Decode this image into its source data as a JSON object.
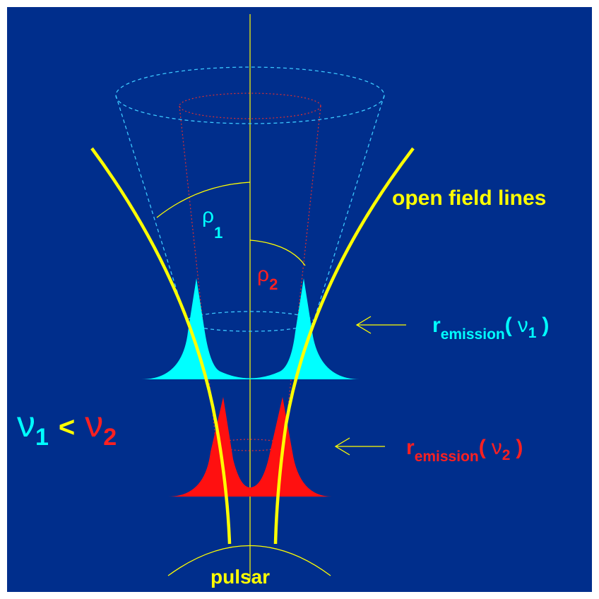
{
  "labels": {
    "open_field_lines": "open field lines",
    "pulsar": "pulsar",
    "rho1": {
      "symbol": "ρ",
      "subscript": "1"
    },
    "rho2": {
      "symbol": "ρ",
      "subscript": "2"
    },
    "emission1": {
      "symbol": "r",
      "subscript": "emission",
      "open": "(",
      "nu": "ν",
      "nu_subscript": "1",
      "close": ")"
    },
    "emission2": {
      "symbol": "r",
      "subscript": "emission",
      "open": "(",
      "nu": "ν",
      "nu_subscript": "2",
      "close": ")"
    },
    "relation": {
      "left": "ν",
      "left_subscript": "1",
      "operator": "<",
      "right": "ν",
      "right_subscript": "2"
    }
  }
}
